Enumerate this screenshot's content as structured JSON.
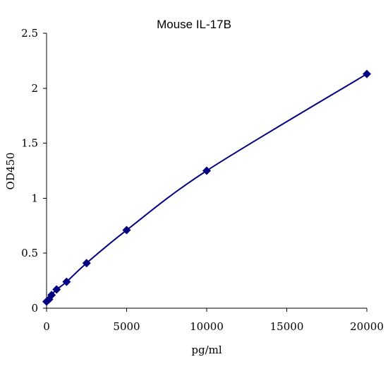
{
  "chart_data": {
    "type": "scatter",
    "title": "Mouse IL-17B",
    "xlabel": "pg/ml",
    "ylabel": "OD450",
    "xlim": [
      0,
      20000
    ],
    "ylim": [
      0,
      2.5
    ],
    "x_ticks": [
      0,
      5000,
      10000,
      15000,
      20000
    ],
    "x_tick_labels": [
      "0",
      "5000",
      "10000",
      "15000",
      "20000"
    ],
    "y_ticks": [
      0,
      0.5,
      1,
      1.5,
      2,
      2.5
    ],
    "y_tick_labels": [
      "0",
      "0.5",
      "1",
      "1.5",
      "2",
      "2.5"
    ],
    "grid": false,
    "legend": "none",
    "series": [
      {
        "marker": "diamond",
        "color": "#000080",
        "trendline": "smooth curve",
        "x": [
          0,
          156,
          313,
          625,
          1250,
          2500,
          5000,
          10000,
          20000
        ],
        "y": [
          0.06,
          0.08,
          0.12,
          0.17,
          0.24,
          0.41,
          0.71,
          1.25,
          2.13
        ]
      }
    ]
  }
}
